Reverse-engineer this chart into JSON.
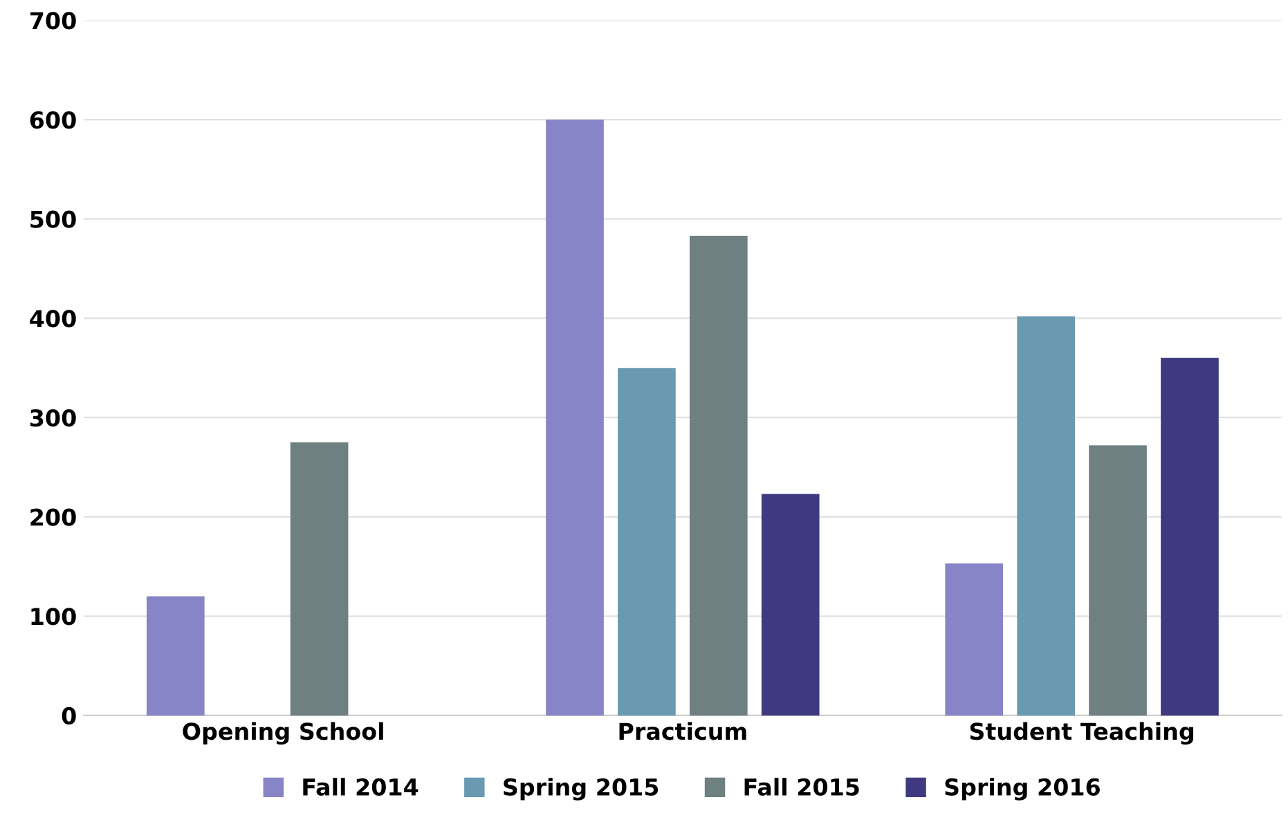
{
  "chart_data": {
    "type": "bar",
    "categories": [
      "Opening School",
      "Practicum",
      "Student Teaching"
    ],
    "series": [
      {
        "name": "Fall 2014",
        "color": "#8884c8",
        "values": [
          120,
          600,
          153
        ]
      },
      {
        "name": "Spring 2015",
        "color": "#6a9ab2",
        "values": [
          null,
          350,
          402
        ]
      },
      {
        "name": "Fall 2015",
        "color": "#6e8080",
        "values": [
          275,
          483,
          272
        ]
      },
      {
        "name": "Spring 2016",
        "color": "#3f3a80",
        "values": [
          null,
          223,
          360
        ]
      }
    ],
    "ylim": [
      0,
      700
    ],
    "yticks": [
      0,
      100,
      200,
      300,
      400,
      500,
      600,
      700
    ],
    "grid": "y",
    "legend": "bottom"
  }
}
